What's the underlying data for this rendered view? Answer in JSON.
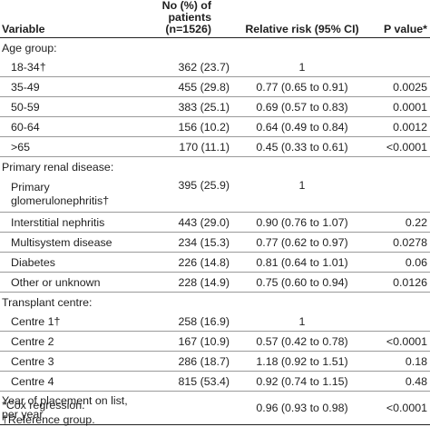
{
  "table": {
    "headers": {
      "variable": "Variable",
      "no": "No (%) of patients (n=1526)",
      "rr": "Relative risk (95% CI)",
      "p": "P value*"
    },
    "rows": [
      {
        "kind": "group",
        "variable": "Age group:",
        "no": "",
        "rr": "",
        "p": ""
      },
      {
        "kind": "item",
        "variable": "18-34†",
        "no": "362 (23.7)",
        "rr": "1",
        "p": ""
      },
      {
        "kind": "item",
        "variable": "35-49",
        "no": "455 (29.8)",
        "rr": "0.77 (0.65 to 0.91)",
        "p": "0.0025"
      },
      {
        "kind": "item",
        "variable": "50-59",
        "no": "383 (25.1)",
        "rr": "0.69 (0.57 to 0.83)",
        "p": "0.0001"
      },
      {
        "kind": "item",
        "variable": "60-64",
        "no": "156 (10.2)",
        "rr": "0.64 (0.49 to 0.84)",
        "p": "0.0012"
      },
      {
        "kind": "item",
        "variable": ">65",
        "no": "170 (11.1)",
        "rr": "0.45 (0.33 to 0.61)",
        "p": "<0.0001"
      },
      {
        "kind": "group",
        "variable": "Primary renal disease:",
        "no": "",
        "rr": "",
        "p": ""
      },
      {
        "kind": "item-tall",
        "variable": "Primary glomerulonephritis†",
        "no": "395 (25.9)",
        "rr": "1",
        "p": ""
      },
      {
        "kind": "item",
        "variable": "Interstitial nephritis",
        "no": "443 (29.0)",
        "rr": "0.90 (0.76 to 1.07)",
        "p": "0.22"
      },
      {
        "kind": "item",
        "variable": "Multisystem disease",
        "no": "234 (15.3)",
        "rr": "0.77 (0.62 to 0.97)",
        "p": "0.0278"
      },
      {
        "kind": "item",
        "variable": "Diabetes",
        "no": "226 (14.8)",
        "rr": "0.81 (0.64 to 1.01)",
        "p": "0.06"
      },
      {
        "kind": "item",
        "variable": "Other or unknown",
        "no": "228 (14.9)",
        "rr": "0.75 (0.60 to 0.94)",
        "p": "0.0126"
      },
      {
        "kind": "group",
        "variable": "Transplant centre:",
        "no": "",
        "rr": "",
        "p": ""
      },
      {
        "kind": "item",
        "variable": "Centre 1†",
        "no": "258 (16.9)",
        "rr": "1",
        "p": ""
      },
      {
        "kind": "item",
        "variable": "Centre 2",
        "no": "167 (10.9)",
        "rr": "0.57 (0.42 to 0.78)",
        "p": "<0.0001"
      },
      {
        "kind": "item",
        "variable": "Centre 3",
        "no": "286 (18.7)",
        "rr": "1.18 (0.92 to 1.51)",
        "p": "0.18"
      },
      {
        "kind": "item",
        "variable": "Centre 4",
        "no": "815 (53.4)",
        "rr": "0.92 (0.74 to 1.15)",
        "p": "0.48"
      },
      {
        "kind": "last",
        "variable": "Year of placement on list, per year",
        "no": "",
        "rr": "0.96 (0.93 to 0.98)",
        "p": "<0.0001"
      }
    ]
  },
  "notes": [
    "*Cox regression.",
    "†Reference group."
  ]
}
